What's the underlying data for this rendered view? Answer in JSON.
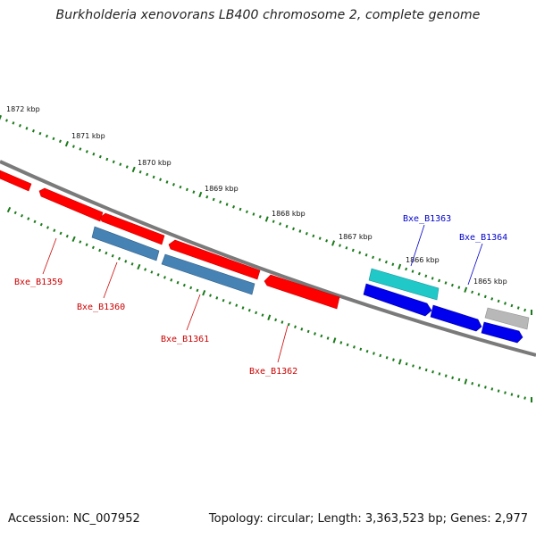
{
  "title": "Burkholderia xenovorans LB400 chromosome 2, complete genome",
  "footer": {
    "accession": "Accession: NC_007952",
    "summary": "Topology: circular; Length: 3,363,523 bp; Genes: 2,977"
  },
  "ticks": [
    {
      "label": "1872 kbp"
    },
    {
      "label": "1871 kbp"
    },
    {
      "label": "1870 kbp"
    },
    {
      "label": "1869 kbp"
    },
    {
      "label": "1868 kbp"
    },
    {
      "label": "1867 kbp"
    },
    {
      "label": "1866 kbp"
    },
    {
      "label": "1865 kbp"
    }
  ],
  "gene_labels": [
    {
      "name": "Bxe_B1359",
      "color": "#cc0000"
    },
    {
      "name": "Bxe_B1360",
      "color": "#cc0000"
    },
    {
      "name": "Bxe_B1361",
      "color": "#cc0000"
    },
    {
      "name": "Bxe_B1362",
      "color": "#cc0000"
    },
    {
      "name": "Bxe_B1363",
      "color": "#0000cc"
    },
    {
      "name": "Bxe_B1364",
      "color": "#0000cc"
    }
  ],
  "colors": {
    "backbone": "#7a7a7a",
    "tick": "#1a7a1a",
    "feature_red": "#ff0000",
    "feature_steelblue": "#4682b4",
    "feature_blue": "#0000ee",
    "feature_cyan": "#20c8c8",
    "feature_gray": "#b0b0b0"
  }
}
